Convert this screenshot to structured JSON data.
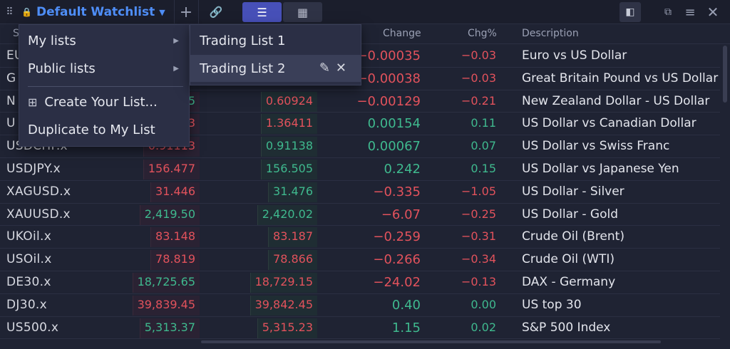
{
  "toolbar": {
    "grip_icon": "⠿",
    "lock_icon": "🔒",
    "watchlist_name": "Default Watchlist",
    "caret_icon": "▼",
    "add_icon": "+",
    "link_icon": "🔗",
    "list_view_icon": "☰",
    "grid_view_icon": "▦",
    "split_icon": "◧",
    "popout_icon": "⧉",
    "menu_icon": "≡",
    "close_icon": "✕"
  },
  "columns": {
    "symbol": "S",
    "change": "Change",
    "chg_pct": "Chg%",
    "description": "Description"
  },
  "rows": [
    {
      "symbol": "EU",
      "bid": "",
      "ask": "",
      "change": "−0.00035",
      "pct": "−0.03",
      "dir": "dn",
      "description": "Euro vs US Dollar"
    },
    {
      "symbol": "G",
      "bid": "",
      "ask": "",
      "change": "−0.00038",
      "pct": "−0.03",
      "dir": "dn",
      "description": "Great Britain Pound vs US Dollar"
    },
    {
      "symbol": "N",
      "bid": "5",
      "ask": "0.60924",
      "change": "−0.00129",
      "pct": "−0.21",
      "dir": "dn",
      "description": "New Zealand Dollar - US Dollar"
    },
    {
      "symbol": "U",
      "bid": "3",
      "ask": "1.36411",
      "change": "0.00154",
      "pct": "0.11",
      "dir": "up",
      "description": "US Dollar vs Canadian Dollar"
    },
    {
      "symbol": "USDCHF.x",
      "bid": "0.91113",
      "ask": "0.91138",
      "change": "0.00067",
      "pct": "0.07",
      "dir": "up",
      "description": "US Dollar vs Swiss Franc"
    },
    {
      "symbol": "USDJPY.x",
      "bid": "156.477",
      "ask": "156.505",
      "change": "0.242",
      "pct": "0.15",
      "dir": "up",
      "description": "US Dollar vs Japanese Yen"
    },
    {
      "symbol": "XAGUSD.x",
      "bid": "31.446",
      "ask": "31.476",
      "change": "−0.335",
      "pct": "−1.05",
      "dir": "dn",
      "description": "US Dollar - Silver"
    },
    {
      "symbol": "XAUUSD.x",
      "bid": "2,419.50",
      "ask": "2,420.02",
      "change": "−6.07",
      "pct": "−0.25",
      "dir": "dn",
      "description": "US Dollar - Gold"
    },
    {
      "symbol": "UKOil.x",
      "bid": "83.148",
      "ask": "83.187",
      "change": "−0.259",
      "pct": "−0.31",
      "dir": "dn",
      "description": "Crude Oil (Brent)"
    },
    {
      "symbol": "USOil.x",
      "bid": "78.819",
      "ask": "78.866",
      "change": "−0.266",
      "pct": "−0.34",
      "dir": "dn",
      "description": "Crude Oil (WTI)"
    },
    {
      "symbol": "DE30.x",
      "bid": "18,725.65",
      "ask": "18,729.15",
      "change": "−24.02",
      "pct": "−0.13",
      "dir": "dn",
      "description": "DAX - Germany"
    },
    {
      "symbol": "DJ30.x",
      "bid": "39,839.45",
      "ask": "39,842.45",
      "change": "0.40",
      "pct": "0.00",
      "dir": "up",
      "description": "US top 30"
    },
    {
      "symbol": "US500.x",
      "bid": "5,313.37",
      "ask": "5,315.23",
      "change": "1.15",
      "pct": "0.02",
      "dir": "up",
      "description": "S&P 500 Index"
    }
  ],
  "dropdown": {
    "my_lists": "My lists",
    "public_lists": "Public lists",
    "create_list": "Create Your List...",
    "create_icon": "⊞",
    "duplicate": "Duplicate to My List",
    "arrow_icon": "▶"
  },
  "submenu": {
    "items": [
      "Trading List 1",
      "Trading List 2"
    ],
    "edit_icon": "✎",
    "delete_icon": "✕"
  },
  "colors": {
    "up": "#3fb98e",
    "down": "#e2525c",
    "accent": "#4f8ef7"
  }
}
